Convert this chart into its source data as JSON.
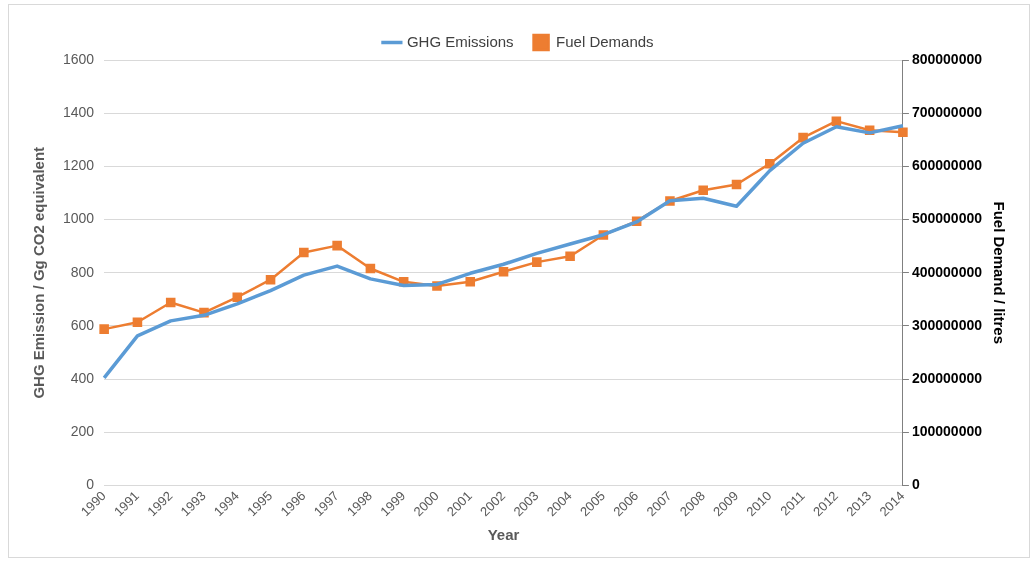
{
  "chart_data": {
    "type": "line",
    "xlabel": "Year",
    "ylabel": "GHG Emission / Gg CO2 equivalent",
    "y2label": "Fuel Demand / litres",
    "categories": [
      "1990",
      "1991",
      "1992",
      "1993",
      "1994",
      "1995",
      "1996",
      "1997",
      "1998",
      "1999",
      "2000",
      "2001",
      "2002",
      "2003",
      "2004",
      "2005",
      "2006",
      "2007",
      "2008",
      "2009",
      "2010",
      "2011",
      "2012",
      "2013",
      "2014"
    ],
    "series": [
      {
        "name": "GHG Emissions",
        "color": "#5b9bd5",
        "marker": "none",
        "values": [
          405,
          563,
          619,
          640,
          683,
          733,
          791,
          825,
          777,
          752,
          756,
          798,
          832,
          873,
          908,
          943,
          991,
          1071,
          1080,
          1050,
          1184,
          1287,
          1349,
          1326,
          1353
        ]
      },
      {
        "name": "Fuel Demands",
        "color": "#ed7d31",
        "marker": "square",
        "axis": "y2",
        "values": [
          294000000,
          307000000,
          344000000,
          325000000,
          354000000,
          387000000,
          438000000,
          451000000,
          408000000,
          383000000,
          375000000,
          383000000,
          402000000,
          420000000,
          431000000,
          471000000,
          497000000,
          535000000,
          555000000,
          566000000,
          605000000,
          654000000,
          685000000,
          668000000,
          664000000
        ]
      }
    ],
    "ylim": [
      0,
      1600
    ],
    "yticks": [
      0,
      200,
      400,
      600,
      800,
      1000,
      1200,
      1400,
      1600
    ],
    "y2lim": [
      0,
      800000000
    ],
    "y2ticks": [
      0,
      100000000,
      200000000,
      300000000,
      400000000,
      500000000,
      600000000,
      700000000,
      800000000
    ],
    "grid": "y",
    "legend": "top"
  }
}
